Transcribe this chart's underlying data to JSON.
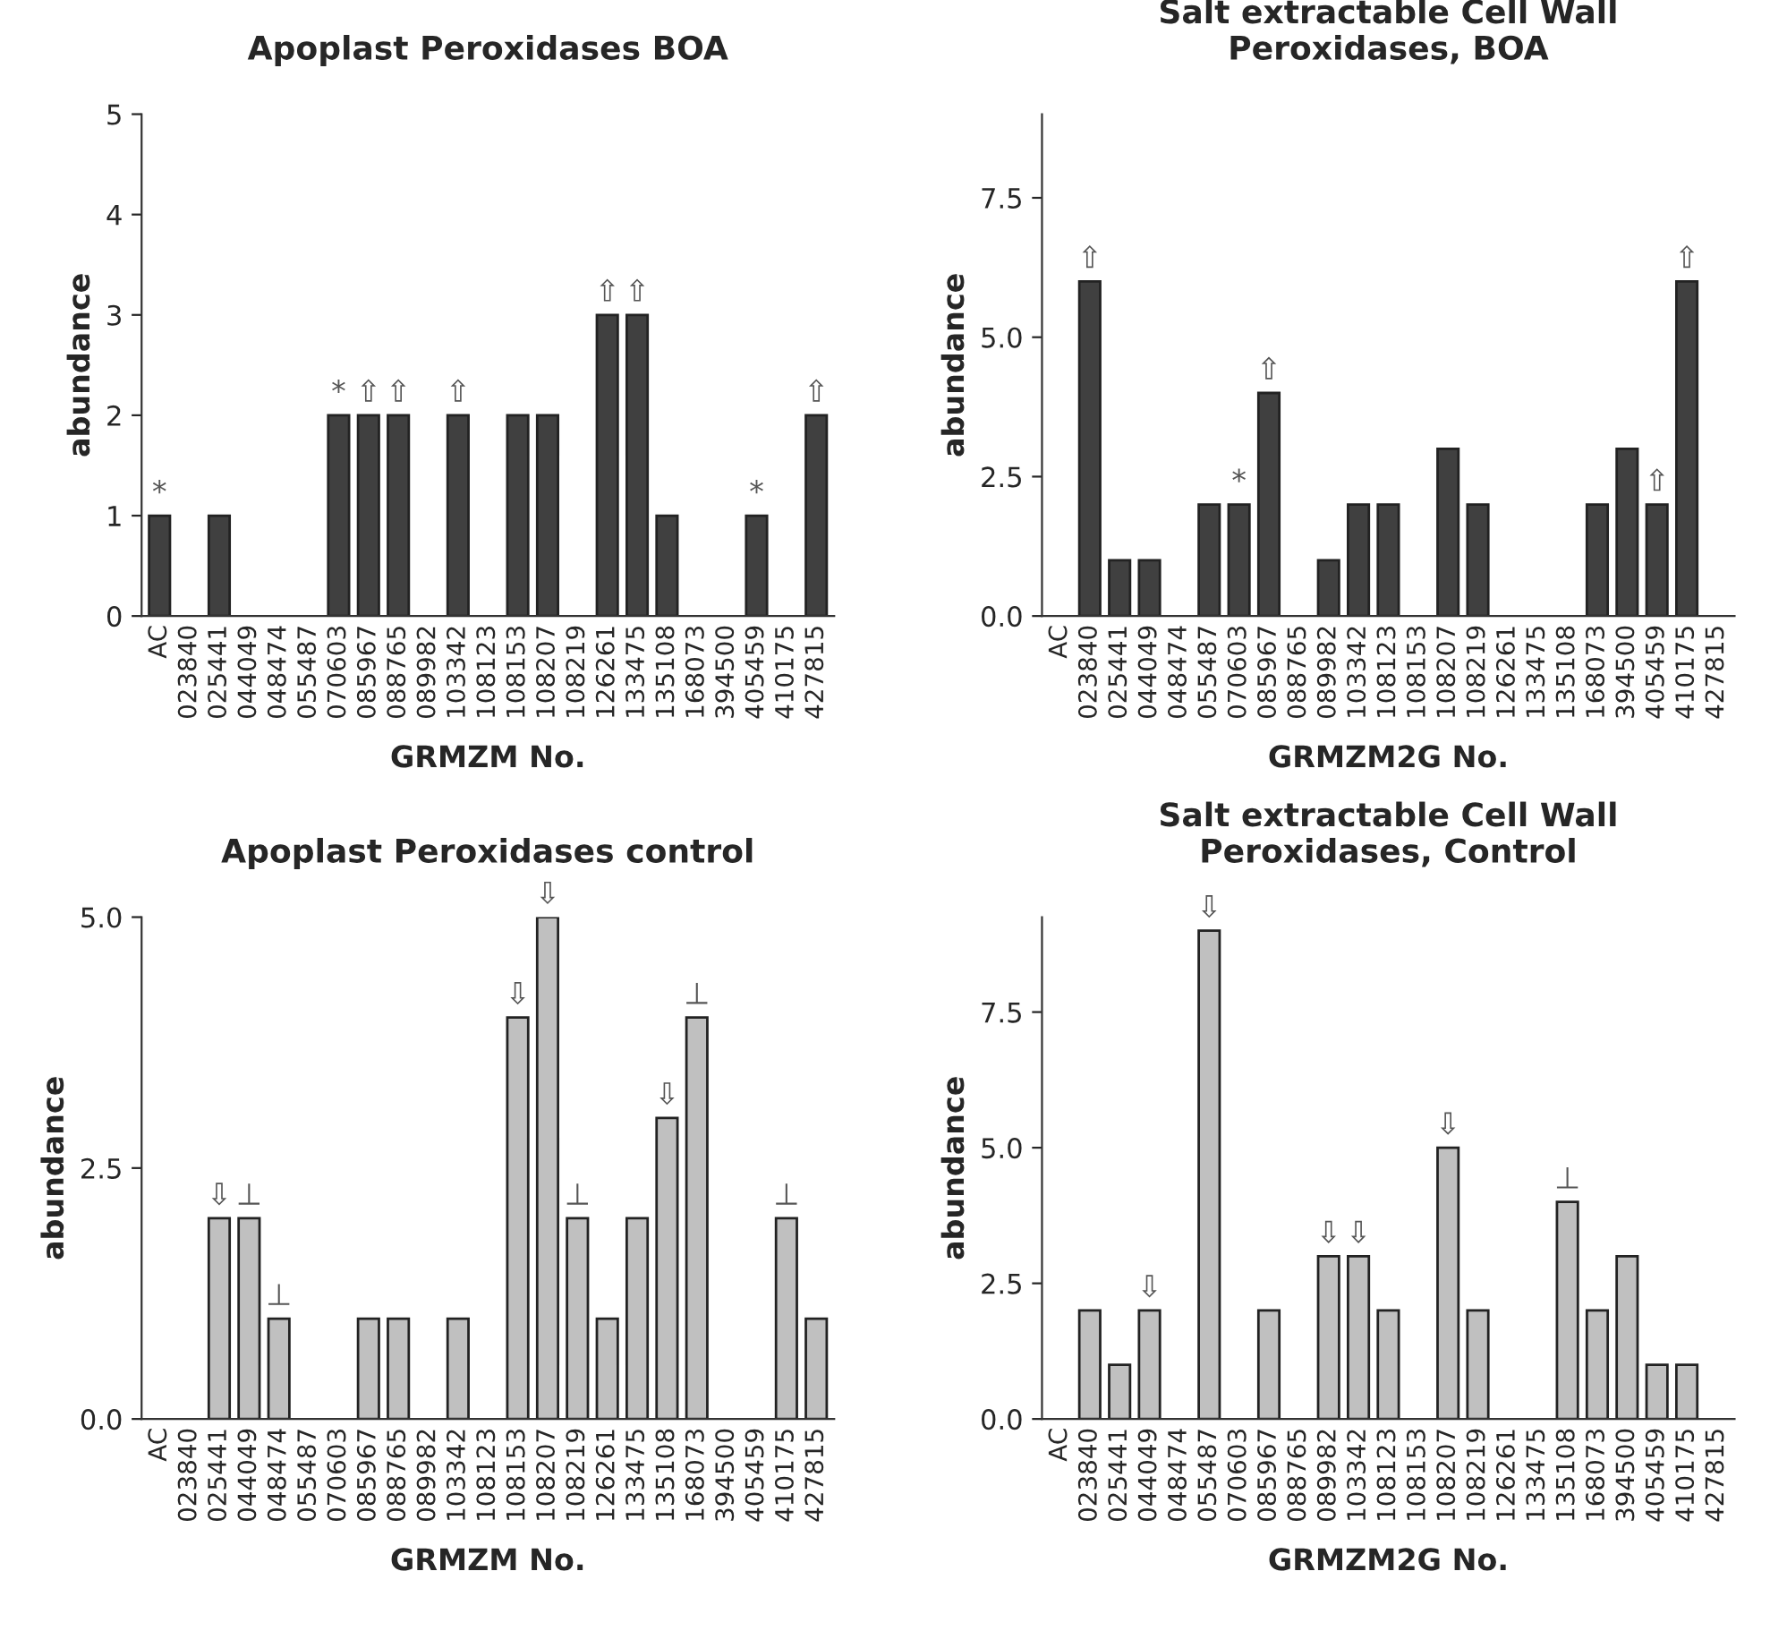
{
  "chart_data": [
    {
      "type": "bar",
      "title": "Apoplast Peroxidases BOA",
      "xlabel": "GRMZM No.",
      "ylabel": "abundance",
      "categories": [
        "AC",
        "023840",
        "025441",
        "044049",
        "048474",
        "055487",
        "070603",
        "085967",
        "088765",
        "089982",
        "103342",
        "108123",
        "108153",
        "108207",
        "108219",
        "126261",
        "133475",
        "135108",
        "168073",
        "394500",
        "405459",
        "410175",
        "427815"
      ],
      "values": [
        1,
        0,
        1,
        0,
        0,
        0,
        2,
        2,
        2,
        0,
        2,
        0,
        2,
        2,
        0,
        3,
        3,
        1,
        0,
        0,
        1,
        0,
        2
      ],
      "color": "#404040",
      "ylim": [
        0,
        5
      ],
      "yticks": [
        0,
        1,
        2,
        3,
        4,
        5
      ],
      "grid": false,
      "legend": false,
      "annotations": [
        {
          "text": "*",
          "x": "AC",
          "y": 1
        },
        {
          "text": "*",
          "x": "070603",
          "y": 2
        },
        {
          "text": "⇧",
          "x": "085967",
          "y": 2
        },
        {
          "text": "⇧",
          "x": "088765",
          "y": 2
        },
        {
          "text": "⇧",
          "x": "103342",
          "y": 2
        },
        {
          "text": "⇧",
          "x": "126261",
          "y": 3
        },
        {
          "text": "⇧",
          "x": "133475",
          "y": 3
        },
        {
          "text": "*",
          "x": "405459",
          "y": 1
        },
        {
          "text": "⇧",
          "x": "427815",
          "y": 2
        }
      ]
    },
    {
      "type": "bar",
      "title": "Salt extractable Cell Wall\nPeroxidases, BOA",
      "xlabel": "GRMZM2G No.",
      "ylabel": "abundance",
      "categories": [
        "AC",
        "023840",
        "025441",
        "044049",
        "048474",
        "055487",
        "070603",
        "085967",
        "088765",
        "089982",
        "103342",
        "108123",
        "108153",
        "108207",
        "108219",
        "126261",
        "133475",
        "135108",
        "168073",
        "394500",
        "405459",
        "410175",
        "427815"
      ],
      "values": [
        0,
        6,
        1,
        1,
        0,
        2,
        2,
        4,
        0,
        1,
        2,
        2,
        0,
        3,
        2,
        0,
        0,
        0,
        2,
        3,
        2,
        6,
        0
      ],
      "color": "#404040",
      "ylim": [
        0,
        9
      ],
      "yticks": [
        {
          "value": 0,
          "label": "0.0"
        },
        {
          "value": 2.5,
          "label": "2.5"
        },
        {
          "value": 5,
          "label": "5.0"
        },
        {
          "value": 7.5,
          "label": "7.5"
        }
      ],
      "grid": false,
      "legend": false,
      "annotations": [
        {
          "text": "⇧",
          "x": "023840",
          "y": 6
        },
        {
          "text": "*",
          "x": "070603",
          "y": 2
        },
        {
          "text": "⇧",
          "x": "085967",
          "y": 4
        },
        {
          "text": "⇧",
          "x": "405459",
          "y": 2
        },
        {
          "text": "⇧",
          "x": "410175",
          "y": 6
        }
      ]
    },
    {
      "type": "bar",
      "title": "Apoplast Peroxidases control",
      "xlabel": "GRMZM No.",
      "ylabel": "abundance",
      "categories": [
        "AC",
        "023840",
        "025441",
        "044049",
        "048474",
        "055487",
        "070603",
        "085967",
        "088765",
        "089982",
        "103342",
        "108123",
        "108153",
        "108207",
        "108219",
        "126261",
        "133475",
        "135108",
        "168073",
        "394500",
        "405459",
        "410175",
        "427815"
      ],
      "values": [
        0,
        0,
        2,
        2,
        1,
        0,
        0,
        1,
        1,
        0,
        1,
        0,
        4,
        5,
        2,
        1,
        2,
        3,
        4,
        0,
        0,
        2,
        1
      ],
      "color": "#c0c0c0",
      "ylim": [
        0,
        5
      ],
      "yticks": [
        {
          "value": 0,
          "label": "0.0"
        },
        {
          "value": 2.5,
          "label": "2.5"
        },
        {
          "value": 5,
          "label": "5.0"
        }
      ],
      "grid": false,
      "legend": false,
      "annotations": [
        {
          "text": "⇩",
          "x": "025441",
          "y": 2
        },
        {
          "text": "⊥",
          "x": "044049",
          "y": 2
        },
        {
          "text": "⊥",
          "x": "048474",
          "y": 1
        },
        {
          "text": "⇩",
          "x": "108153",
          "y": 4
        },
        {
          "text": "⇩",
          "x": "108207",
          "y": 5
        },
        {
          "text": "⊥",
          "x": "108219",
          "y": 2
        },
        {
          "text": "⇩",
          "x": "135108",
          "y": 3
        },
        {
          "text": "⊥",
          "x": "168073",
          "y": 4
        },
        {
          "text": "⊥",
          "x": "410175",
          "y": 2
        }
      ]
    },
    {
      "type": "bar",
      "title": "Salt extractable Cell Wall\nPeroxidases, Control",
      "xlabel": "GRMZM2G No.",
      "ylabel": "abundance",
      "categories": [
        "AC",
        "023840",
        "025441",
        "044049",
        "048474",
        "055487",
        "070603",
        "085967",
        "088765",
        "089982",
        "103342",
        "108123",
        "108153",
        "108207",
        "108219",
        "126261",
        "133475",
        "135108",
        "168073",
        "394500",
        "405459",
        "410175",
        "427815"
      ],
      "values": [
        0,
        2,
        1,
        2,
        0,
        9,
        0,
        2,
        0,
        3,
        3,
        2,
        0,
        5,
        2,
        0,
        0,
        4,
        2,
        3,
        1,
        1,
        0
      ],
      "color": "#c0c0c0",
      "ylim": [
        0,
        9.25
      ],
      "yticks": [
        {
          "value": 0,
          "label": "0.0"
        },
        {
          "value": 2.5,
          "label": "2.5"
        },
        {
          "value": 5,
          "label": "5.0"
        },
        {
          "value": 7.5,
          "label": "7.5"
        }
      ],
      "grid": false,
      "legend": false,
      "annotations": [
        {
          "text": "⇩",
          "x": "044049",
          "y": 2
        },
        {
          "text": "⇩",
          "x": "055487",
          "y": 9
        },
        {
          "text": "⇩",
          "x": "089982",
          "y": 3
        },
        {
          "text": "⇩",
          "x": "103342",
          "y": 3
        },
        {
          "text": "⇩",
          "x": "108207",
          "y": 5
        },
        {
          "text": "⊥",
          "x": "135108",
          "y": 4
        }
      ]
    }
  ]
}
